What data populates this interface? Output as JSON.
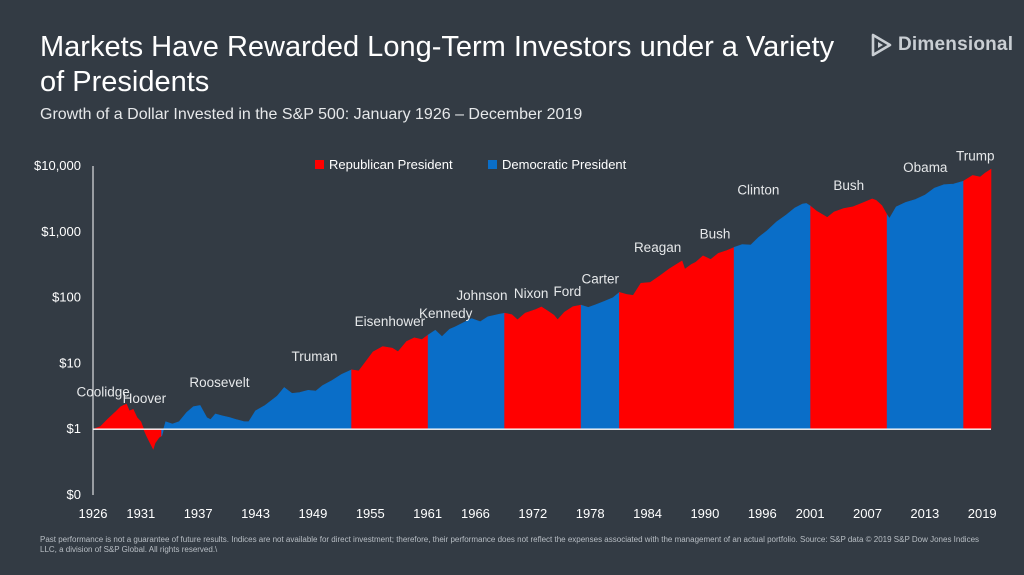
{
  "header": {
    "title": "Markets Have Rewarded Long-Term Investors under a Variety of Presidents",
    "subtitle": "Growth of a Dollar Invested in the S&P 500: January 1926 – December 2019",
    "brand": "Dimensional"
  },
  "footnote": "Past performance is not a guarantee of future results. Indices are not available for direct investment; therefore, their performance does not reflect the expenses associated with the management of an actual portfolio. Source: S&P data © 2019 S&P Dow Jones Indices LLC, a division of S&P Global. All rights reserved.\\",
  "colors": {
    "background": "#333b44",
    "republican": "#ff0000",
    "democratic": "#0a6ec8",
    "baseline": "#ffffff"
  },
  "chart_data": {
    "type": "area",
    "title": "Growth of a Dollar Invested in the S&P 500: January 1926 – December 2019",
    "xlabel": "",
    "ylabel": "",
    "y_scale": "log",
    "ylim": [
      0.1,
      10000
    ],
    "xlim": [
      1926,
      2019.92
    ],
    "y_ticks": [
      {
        "value": 0.1,
        "label": "$0"
      },
      {
        "value": 1,
        "label": "$1"
      },
      {
        "value": 10,
        "label": "$10"
      },
      {
        "value": 100,
        "label": "$100"
      },
      {
        "value": 1000,
        "label": "$1,000"
      },
      {
        "value": 10000,
        "label": "$10,000"
      }
    ],
    "x_ticks": [
      "1926",
      "1931",
      "1937",
      "1943",
      "1949",
      "1955",
      "1961",
      "1966",
      "1972",
      "1978",
      "1984",
      "1990",
      "1996",
      "2001",
      "2007",
      "2013",
      "2019"
    ],
    "legend": {
      "placement": "top-center",
      "items": [
        {
          "name": "Republican President",
          "party": "R"
        },
        {
          "name": "Democratic President",
          "party": "D"
        }
      ]
    },
    "grid": false,
    "presidencies": [
      {
        "name": "Coolidge",
        "party": "R",
        "start": 1926.0,
        "end": 1929.17
      },
      {
        "name": "Hoover",
        "party": "R",
        "start": 1929.17,
        "end": 1933.17
      },
      {
        "name": "Roosevelt",
        "party": "D",
        "start": 1933.17,
        "end": 1945.28
      },
      {
        "name": "Truman",
        "party": "D",
        "start": 1945.28,
        "end": 1953.05
      },
      {
        "name": "Eisenhower",
        "party": "R",
        "start": 1953.05,
        "end": 1961.05
      },
      {
        "name": "Kennedy",
        "party": "D",
        "start": 1961.05,
        "end": 1963.89
      },
      {
        "name": "Johnson",
        "party": "D",
        "start": 1963.89,
        "end": 1969.05
      },
      {
        "name": "Nixon",
        "party": "R",
        "start": 1969.05,
        "end": 1974.6
      },
      {
        "name": "Ford",
        "party": "R",
        "start": 1974.6,
        "end": 1977.05
      },
      {
        "name": "Carter",
        "party": "D",
        "start": 1977.05,
        "end": 1981.05
      },
      {
        "name": "Reagan",
        "party": "R",
        "start": 1981.05,
        "end": 1989.05
      },
      {
        "name": "Bush",
        "party": "R",
        "start": 1989.05,
        "end": 1993.05
      },
      {
        "name": "Clinton",
        "party": "D",
        "start": 1993.05,
        "end": 2001.05
      },
      {
        "name": "Bush",
        "party": "R",
        "start": 2001.05,
        "end": 2009.05
      },
      {
        "name": "Obama",
        "party": "D",
        "start": 2009.05,
        "end": 2017.05
      },
      {
        "name": "Trump",
        "party": "R",
        "start": 2017.05,
        "end": 2019.92
      }
    ],
    "series": [
      {
        "points": [
          [
            1926.0,
            1.0
          ],
          [
            1926.8,
            1.1
          ],
          [
            1927.5,
            1.4
          ],
          [
            1928.3,
            1.8
          ],
          [
            1928.9,
            2.2
          ],
          [
            1929.5,
            2.4
          ],
          [
            1929.8,
            1.9
          ],
          [
            1930.2,
            2.0
          ],
          [
            1930.6,
            1.5
          ],
          [
            1931.0,
            1.3
          ],
          [
            1931.3,
            1.0
          ],
          [
            1931.6,
            0.8
          ],
          [
            1931.9,
            0.65
          ],
          [
            1932.3,
            0.5
          ],
          [
            1932.5,
            0.62
          ],
          [
            1932.9,
            0.75
          ],
          [
            1933.2,
            0.8
          ],
          [
            1933.6,
            1.3
          ],
          [
            1934.3,
            1.2
          ],
          [
            1935.0,
            1.3
          ],
          [
            1935.8,
            1.8
          ],
          [
            1936.5,
            2.2
          ],
          [
            1937.2,
            2.3
          ],
          [
            1937.9,
            1.5
          ],
          [
            1938.3,
            1.4
          ],
          [
            1938.8,
            1.7
          ],
          [
            1939.5,
            1.6
          ],
          [
            1940.3,
            1.5
          ],
          [
            1941.0,
            1.4
          ],
          [
            1941.8,
            1.3
          ],
          [
            1942.3,
            1.3
          ],
          [
            1943.0,
            1.9
          ],
          [
            1944.0,
            2.3
          ],
          [
            1945.28,
            3.2
          ],
          [
            1946.0,
            4.3
          ],
          [
            1946.8,
            3.5
          ],
          [
            1947.6,
            3.6
          ],
          [
            1948.5,
            3.9
          ],
          [
            1949.3,
            3.8
          ],
          [
            1950.0,
            4.6
          ],
          [
            1951.0,
            5.5
          ],
          [
            1952.0,
            6.8
          ],
          [
            1953.05,
            8.0
          ],
          [
            1953.8,
            7.7
          ],
          [
            1954.5,
            10.5
          ],
          [
            1955.3,
            15.0
          ],
          [
            1956.3,
            18.0
          ],
          [
            1957.3,
            17.0
          ],
          [
            1957.9,
            15.0
          ],
          [
            1958.8,
            21.5
          ],
          [
            1959.6,
            24.5
          ],
          [
            1960.4,
            23.0
          ],
          [
            1961.05,
            27.0
          ],
          [
            1961.8,
            32.0
          ],
          [
            1962.5,
            25.5
          ],
          [
            1963.3,
            33.0
          ],
          [
            1963.89,
            36.0
          ],
          [
            1964.8,
            42.0
          ],
          [
            1965.6,
            48.0
          ],
          [
            1966.5,
            43.0
          ],
          [
            1967.3,
            51.0
          ],
          [
            1968.5,
            56.0
          ],
          [
            1969.05,
            58.0
          ],
          [
            1969.8,
            55.0
          ],
          [
            1970.4,
            46.0
          ],
          [
            1971.2,
            58.0
          ],
          [
            1972.3,
            66.0
          ],
          [
            1972.9,
            72.0
          ],
          [
            1973.6,
            62.0
          ],
          [
            1974.2,
            54.0
          ],
          [
            1974.6,
            46.0
          ],
          [
            1975.3,
            60.0
          ],
          [
            1976.2,
            73.0
          ],
          [
            1977.05,
            77.0
          ],
          [
            1977.8,
            71.0
          ],
          [
            1978.6,
            78.0
          ],
          [
            1979.5,
            88.0
          ],
          [
            1980.4,
            100.0
          ],
          [
            1981.05,
            120.0
          ],
          [
            1981.8,
            112.0
          ],
          [
            1982.5,
            108.0
          ],
          [
            1983.3,
            165.0
          ],
          [
            1984.3,
            170.0
          ],
          [
            1985.3,
            215.0
          ],
          [
            1986.3,
            275.0
          ],
          [
            1987.6,
            360.0
          ],
          [
            1987.9,
            270.0
          ],
          [
            1988.6,
            320.0
          ],
          [
            1989.05,
            345.0
          ],
          [
            1989.8,
            430.0
          ],
          [
            1990.6,
            380.0
          ],
          [
            1991.4,
            470.0
          ],
          [
            1992.3,
            520.0
          ],
          [
            1993.05,
            580.0
          ],
          [
            1993.9,
            640.0
          ],
          [
            1994.8,
            630.0
          ],
          [
            1995.6,
            820.0
          ],
          [
            1996.5,
            1040.0
          ],
          [
            1997.5,
            1420.0
          ],
          [
            1998.5,
            1800.0
          ],
          [
            1999.4,
            2300.0
          ],
          [
            2000.2,
            2650.0
          ],
          [
            2000.6,
            2700.0
          ],
          [
            2001.05,
            2450.0
          ],
          [
            2001.7,
            2050.0
          ],
          [
            2002.5,
            1750.0
          ],
          [
            2002.8,
            1650.0
          ],
          [
            2003.5,
            2000.0
          ],
          [
            2004.5,
            2250.0
          ],
          [
            2005.5,
            2400.0
          ],
          [
            2006.5,
            2750.0
          ],
          [
            2007.5,
            3150.0
          ],
          [
            2007.9,
            3000.0
          ],
          [
            2008.5,
            2500.0
          ],
          [
            2009.05,
            1800.0
          ],
          [
            2009.3,
            1600.0
          ],
          [
            2010.0,
            2400.0
          ],
          [
            2011.0,
            2800.0
          ],
          [
            2012.0,
            3100.0
          ],
          [
            2013.0,
            3600.0
          ],
          [
            2014.0,
            4600.0
          ],
          [
            2015.0,
            5200.0
          ],
          [
            2016.0,
            5300.0
          ],
          [
            2017.05,
            5900.0
          ],
          [
            2018.0,
            7200.0
          ],
          [
            2018.8,
            6800.0
          ],
          [
            2019.3,
            7800.0
          ],
          [
            2019.92,
            8900.0
          ]
        ]
      }
    ]
  }
}
